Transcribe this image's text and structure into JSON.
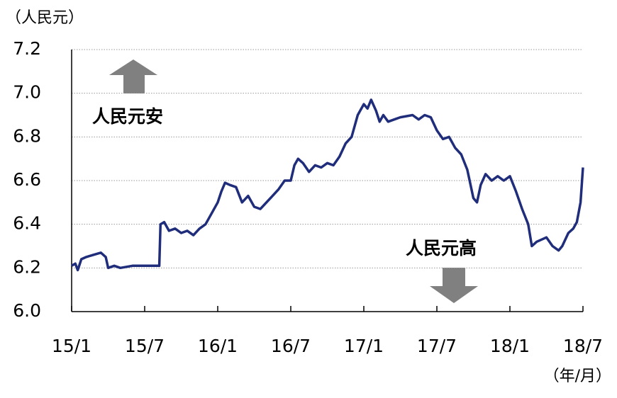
{
  "chart_data": {
    "type": "line",
    "y_unit": "（人民元）",
    "x_unit": "（年/月）",
    "annotations": [
      "人民元安",
      "人民元高"
    ],
    "xlim": [
      0,
      42
    ],
    "xticks": [
      {
        "value": 0,
        "label": "15/1"
      },
      {
        "value": 6,
        "label": "15/7"
      },
      {
        "value": 12,
        "label": "16/1"
      },
      {
        "value": 18,
        "label": "16/7"
      },
      {
        "value": 24,
        "label": "17/1"
      },
      {
        "value": 30,
        "label": "17/7"
      },
      {
        "value": 36,
        "label": "18/1"
      },
      {
        "value": 42,
        "label": "18/7"
      }
    ],
    "ylim": [
      6.0,
      7.2
    ],
    "yticks": [
      {
        "value": 6.0,
        "label": "6.0"
      },
      6.2,
      6.4,
      6.6,
      6.8,
      {
        "value": 7.0,
        "label": "7.0"
      },
      7.2
    ],
    "grid": true,
    "series": [
      {
        "color": "#1f2d7b",
        "x": [
          0,
          0.3,
          0.5,
          0.8,
          1.2,
          1.8,
          2.4,
          2.8,
          3,
          3.5,
          4,
          5,
          6,
          6.8,
          7.2,
          7.3,
          7.6,
          8,
          8.5,
          9,
          9.5,
          10,
          10.5,
          11,
          11.5,
          12,
          12.3,
          12.6,
          13,
          13.5,
          14,
          14.5,
          15,
          15.5,
          16,
          16.5,
          17,
          17.5,
          18,
          18.3,
          18.6,
          19,
          19.5,
          20,
          20.5,
          21,
          21.5,
          22,
          22.5,
          23,
          23.5,
          24,
          24.3,
          24.6,
          25,
          25.3,
          25.6,
          26,
          26.5,
          27,
          28,
          28.5,
          29,
          29.5,
          30,
          30.5,
          31,
          31.5,
          32,
          32.5,
          33,
          33.3,
          33.6,
          34,
          34.5,
          35,
          35.5,
          36,
          36.5,
          37,
          37.5,
          37.8,
          38.2,
          38.6,
          39,
          39.5,
          40,
          40.3,
          40.8,
          41.2,
          41.5,
          41.8,
          42
        ],
        "values": [
          6.21,
          6.22,
          6.19,
          6.24,
          6.25,
          6.26,
          6.27,
          6.25,
          6.2,
          6.21,
          6.2,
          6.21,
          6.21,
          6.21,
          6.21,
          6.4,
          6.41,
          6.37,
          6.38,
          6.36,
          6.37,
          6.35,
          6.38,
          6.4,
          6.45,
          6.5,
          6.55,
          6.59,
          6.58,
          6.57,
          6.5,
          6.53,
          6.48,
          6.47,
          6.5,
          6.53,
          6.56,
          6.6,
          6.6,
          6.67,
          6.7,
          6.68,
          6.64,
          6.67,
          6.66,
          6.68,
          6.67,
          6.71,
          6.77,
          6.8,
          6.9,
          6.95,
          6.93,
          6.97,
          6.92,
          6.87,
          6.9,
          6.87,
          6.88,
          6.89,
          6.9,
          6.88,
          6.9,
          6.89,
          6.83,
          6.79,
          6.8,
          6.75,
          6.72,
          6.65,
          6.52,
          6.5,
          6.58,
          6.63,
          6.6,
          6.62,
          6.6,
          6.62,
          6.55,
          6.47,
          6.4,
          6.3,
          6.32,
          6.33,
          6.34,
          6.3,
          6.28,
          6.3,
          6.36,
          6.38,
          6.41,
          6.5,
          6.66
        ]
      }
    ]
  }
}
